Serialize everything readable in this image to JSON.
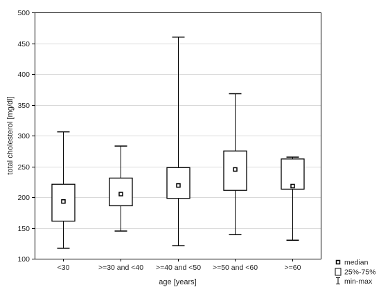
{
  "chart_data": {
    "type": "box",
    "title": "",
    "xlabel": "age [years]",
    "ylabel": "total cholesterol [mg/dl]",
    "ylim": [
      100,
      500
    ],
    "yticks": [
      100,
      150,
      200,
      250,
      300,
      350,
      400,
      450,
      500
    ],
    "grid": "horizontal",
    "legend_position": "bottom-right outside",
    "categories": [
      "<30",
      ">=30 and <40",
      ">=40 and <50",
      ">=50 and <60",
      ">=60"
    ],
    "series": [
      {
        "category": "<30",
        "min": 117,
        "q1": 161,
        "median": 193,
        "q3": 221,
        "max": 306
      },
      {
        "category": ">=30 and <40",
        "min": 145,
        "q1": 186,
        "median": 205,
        "q3": 231,
        "max": 283
      },
      {
        "category": ">=40 and <50",
        "min": 121,
        "q1": 198,
        "median": 219,
        "q3": 248,
        "max": 460
      },
      {
        "category": ">=50 and <60",
        "min": 139,
        "q1": 211,
        "median": 245,
        "q3": 275,
        "max": 368
      },
      {
        "category": ">=60",
        "min": 130,
        "q1": 213,
        "median": 218,
        "q3": 262,
        "max": 265
      }
    ],
    "legend": [
      "median",
      "25%-75%",
      "min-max"
    ],
    "colors": {
      "stroke": "#000000",
      "grid": "#d9d9d9",
      "fill": "#ffffff"
    }
  }
}
